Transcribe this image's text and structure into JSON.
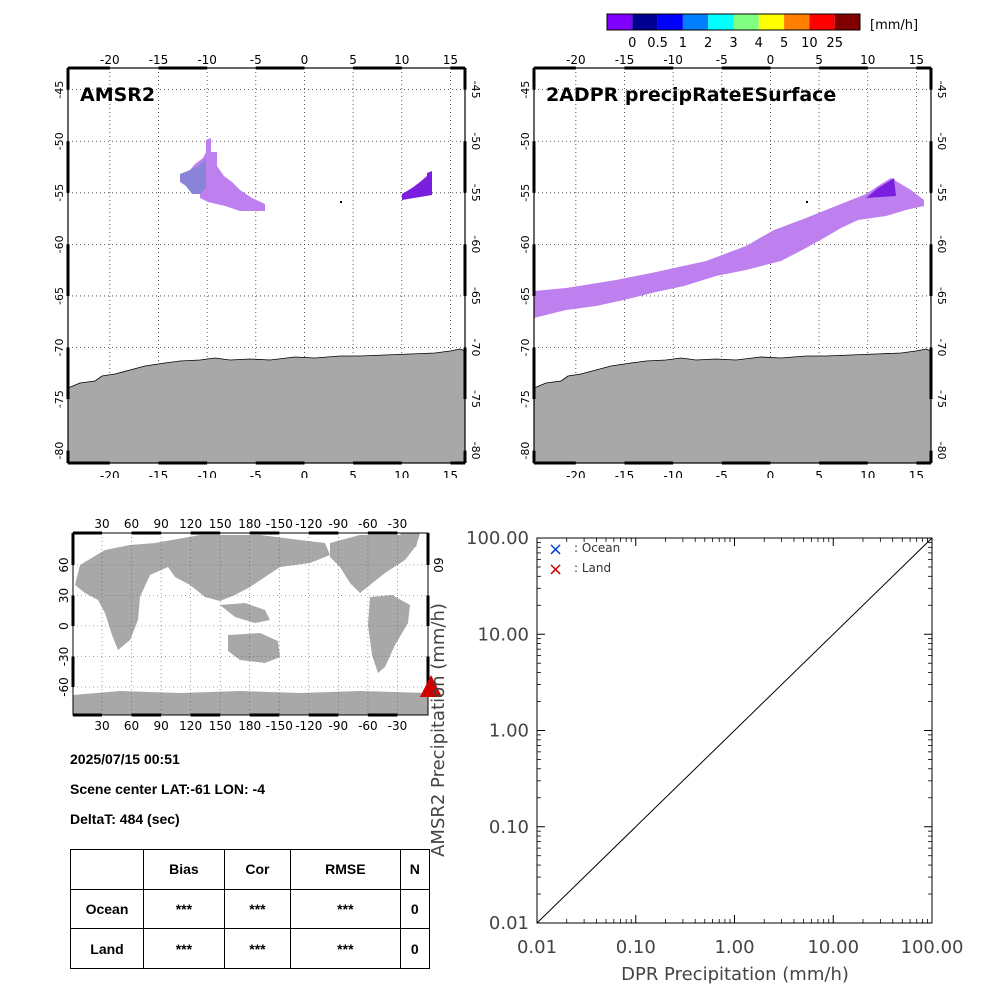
{
  "colorbar": {
    "unit": "[mm/h]",
    "tick_labels": [
      "0",
      "0.5",
      "1",
      "2",
      "3",
      "4",
      "5",
      "10",
      "25"
    ],
    "colors": [
      "#8000ff",
      "#000090",
      "#0000ff",
      "#0080ff",
      "#00ffff",
      "#80ff80",
      "#ffff00",
      "#ff8000",
      "#ff0000",
      "#800000"
    ]
  },
  "map_ticks": {
    "lon": [
      "-20",
      "-15",
      "-10",
      "-5",
      "0",
      "5",
      "10",
      "15"
    ],
    "lat": [
      "-45",
      "-50",
      "-55",
      "-60",
      "-65",
      "-70",
      "-75",
      "-80"
    ]
  },
  "panel_amsr2": {
    "title": "AMSR2"
  },
  "panel_dpr": {
    "title": "2ADPR precipRateESurface"
  },
  "globe": {
    "lon_ticks": [
      "30",
      "60",
      "90",
      "120",
      "150",
      "180",
      "-150",
      "-120",
      "-90",
      "-60",
      "-30"
    ],
    "lat_ticks": [
      "60",
      "30",
      "0",
      "-30",
      "-60"
    ],
    "right_lat_tick": "60",
    "marker_color": "#cc0000"
  },
  "info": {
    "datetime": "2025/07/15 00:51",
    "scene_center": "Scene center LAT:-61   LON:  -4",
    "delta_t": "DeltaT:  484 (sec)"
  },
  "stats_table": {
    "headers": [
      "",
      "Bias",
      "Cor",
      "RMSE",
      "N"
    ],
    "rows": [
      [
        "Ocean",
        "***",
        "***",
        "***",
        "0"
      ],
      [
        "Land",
        "***",
        "***",
        "***",
        "0"
      ]
    ]
  },
  "chart_data": {
    "type": "scatter",
    "xlabel": "DPR Precipitation (mm/h)",
    "ylabel": "AMSR2 Precipitation (mm/h)",
    "xscale": "log",
    "yscale": "log",
    "xlim": [
      0.01,
      100
    ],
    "ylim": [
      0.01,
      100
    ],
    "x_tick_labels": [
      "0.01",
      "0.10",
      "1.00",
      "10.00",
      "100.00"
    ],
    "y_tick_labels": [
      "0.01",
      "0.10",
      "1.00",
      "10.00",
      "100.00"
    ],
    "legend": [
      {
        "symbol": "×",
        "label": ": Ocean",
        "color": "#0044dd"
      },
      {
        "symbol": "×",
        "label": ": Land",
        "color": "#cc0000"
      }
    ],
    "legend_position": "top-left",
    "series": [
      {
        "name": "Ocean",
        "points": []
      },
      {
        "name": "Land",
        "points": []
      }
    ],
    "reference_line": "1:1"
  }
}
